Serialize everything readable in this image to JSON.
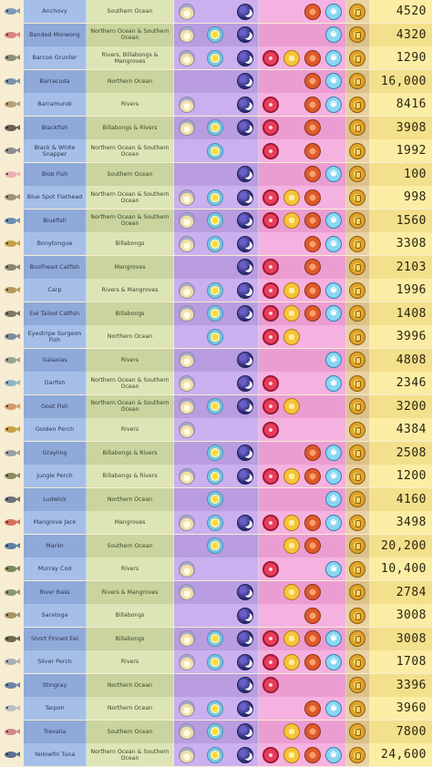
{
  "colors": {
    "time_dawn": "#f2dfa6",
    "time_day": "#79c7e0",
    "time_night": "#2a2c74",
    "season_spring": "#e83e5a",
    "season_summer": "#f7c43a",
    "season_autumn": "#de5a2c",
    "season_winter": "#8ad6f2",
    "coin": "#e0a528"
  },
  "icons": {
    "time": [
      "dawn-icon",
      "day-icon",
      "night-icon"
    ],
    "season": [
      "spring-icon",
      "summer-icon",
      "autumn-icon",
      "winter-icon"
    ],
    "price": "coin-icon",
    "winter_glyph": "❄"
  },
  "fish": [
    {
      "name": "Anchovy",
      "location": "Southern Ocean",
      "time": [
        "dawn",
        "night"
      ],
      "season": [
        "autumn",
        "winter"
      ],
      "price": "4520",
      "fish_color": "#7f9bb5"
    },
    {
      "name": "Banded Morwong",
      "location": "Northern Ocean & Southern Ocean",
      "time": [
        "dawn",
        "day",
        "night"
      ],
      "season": [
        "winter"
      ],
      "price": "4320",
      "fish_color": "#d9837e"
    },
    {
      "name": "Barcoo Grunter",
      "location": "Rivers, Billabongs & Mangroves",
      "time": [
        "dawn",
        "day",
        "night"
      ],
      "season": [
        "spring",
        "summer",
        "autumn",
        "winter"
      ],
      "price": "1290",
      "fish_color": "#8a8f7a"
    },
    {
      "name": "Barracuda",
      "location": "Northern Ocean",
      "time": [
        "night"
      ],
      "season": [
        "autumn",
        "winter"
      ],
      "price": "16,000",
      "fish_color": "#7a93a8"
    },
    {
      "name": "Barramundi",
      "location": "Rivers",
      "time": [
        "dawn",
        "night"
      ],
      "season": [
        "spring",
        "autumn",
        "winter"
      ],
      "price": "8416",
      "fish_color": "#b8a27a"
    },
    {
      "name": "Blackfish",
      "location": "Billabongs & Rivers",
      "time": [
        "dawn",
        "day",
        "night"
      ],
      "season": [
        "spring",
        "autumn"
      ],
      "price": "3908",
      "fish_color": "#6b6256"
    },
    {
      "name": "Black & White Snapper",
      "location": "Northern Ocean & Southern Ocean",
      "time": [
        "day"
      ],
      "season": [
        "spring",
        "autumn"
      ],
      "price": "1992",
      "fish_color": "#8d8d8d"
    },
    {
      "name": "Blob Fish",
      "location": "Southern Ocean",
      "time": [
        "night"
      ],
      "season": [
        "autumn",
        "winter"
      ],
      "price": "100",
      "fish_color": "#e8b1b3"
    },
    {
      "name": "Blue Spot Flathead",
      "location": "Northern Ocean & Southern Ocean",
      "time": [
        "dawn",
        "day",
        "night"
      ],
      "season": [
        "spring",
        "summer",
        "autumn"
      ],
      "price": "998",
      "fish_color": "#a39274"
    },
    {
      "name": "Bluefish",
      "location": "Northern Ocean & Southern Ocean",
      "time": [
        "dawn",
        "day",
        "night"
      ],
      "season": [
        "spring",
        "summer",
        "autumn",
        "winter"
      ],
      "price": "1560",
      "fish_color": "#6f8fb1"
    },
    {
      "name": "Bonytongue",
      "location": "Billabongs",
      "time": [
        "dawn",
        "day",
        "night"
      ],
      "season": [
        "autumn",
        "winter"
      ],
      "price": "3308",
      "fish_color": "#c2a246"
    },
    {
      "name": "Boofhead Catfish",
      "location": "Mangroves",
      "time": [
        "night"
      ],
      "season": [
        "spring",
        "autumn"
      ],
      "price": "2103",
      "fish_color": "#8b8470"
    },
    {
      "name": "Carp",
      "location": "Rivers & Mangroves",
      "time": [
        "dawn",
        "day",
        "night"
      ],
      "season": [
        "spring",
        "summer",
        "autumn",
        "winter"
      ],
      "price": "1996",
      "fish_color": "#b79a5a"
    },
    {
      "name": "Eel Tailed Catfish",
      "location": "Billabongs",
      "time": [
        "dawn",
        "day",
        "night"
      ],
      "season": [
        "spring",
        "summer",
        "autumn",
        "winter"
      ],
      "price": "1408",
      "fish_color": "#7d7866"
    },
    {
      "name": "Eyestripe Surgeon Fish",
      "location": "Northern Ocean",
      "time": [
        "day"
      ],
      "season": [
        "spring",
        "summer"
      ],
      "price": "3996",
      "fish_color": "#7e8c9b"
    },
    {
      "name": "Galaxias",
      "location": "Rivers",
      "time": [
        "dawn",
        "night"
      ],
      "season": [
        "winter"
      ],
      "price": "4808",
      "fish_color": "#9aa594"
    },
    {
      "name": "Garfish",
      "location": "Northern Ocean & Southern Ocean",
      "time": [
        "dawn",
        "night"
      ],
      "season": [
        "spring",
        "winter"
      ],
      "price": "2346",
      "fish_color": "#8fb3c4"
    },
    {
      "name": "Goat Fish",
      "location": "Northern Ocean & Southern Ocean",
      "time": [
        "dawn",
        "day",
        "night"
      ],
      "season": [
        "spring",
        "summer"
      ],
      "price": "3200",
      "fish_color": "#d39a70"
    },
    {
      "name": "Golden Perch",
      "location": "Rivers",
      "time": [
        "dawn"
      ],
      "season": [
        "spring"
      ],
      "price": "4384",
      "fish_color": "#c9a042"
    },
    {
      "name": "Grayling",
      "location": "Billabongs & Rivers",
      "time": [
        "day",
        "night"
      ],
      "season": [
        "autumn",
        "winter"
      ],
      "price": "2508",
      "fish_color": "#9aa2a6"
    },
    {
      "name": "Jungle Perch",
      "location": "Billabongs & Rivers",
      "time": [
        "dawn",
        "day",
        "night"
      ],
      "season": [
        "spring",
        "summer",
        "autumn",
        "winter"
      ],
      "price": "1200",
      "fish_color": "#8c8a60"
    },
    {
      "name": "Ludwick",
      "location": "Northern Ocean",
      "time": [
        "day"
      ],
      "season": [
        "winter"
      ],
      "price": "4160",
      "fish_color": "#6d727a"
    },
    {
      "name": "Mangrove Jack",
      "location": "Mangroves",
      "time": [
        "dawn",
        "day",
        "night"
      ],
      "season": [
        "spring",
        "summer",
        "autumn",
        "winter"
      ],
      "price": "3498",
      "fish_color": "#d6705a"
    },
    {
      "name": "Marlin",
      "location": "Southern Ocean",
      "time": [
        "day"
      ],
      "season": [
        "summer",
        "autumn"
      ],
      "price": "20,200",
      "fish_color": "#5d7fa3"
    },
    {
      "name": "Murray Cod",
      "location": "Rivers",
      "time": [
        "dawn"
      ],
      "season": [
        "spring",
        "winter"
      ],
      "price": "10,400",
      "fish_color": "#7a8a5a"
    },
    {
      "name": "River Bass",
      "location": "Rivers & Mangroves",
      "time": [
        "dawn",
        "night"
      ],
      "season": [
        "summer",
        "autumn"
      ],
      "price": "2784",
      "fish_color": "#8a9672"
    },
    {
      "name": "Saratoga",
      "location": "Billabongs",
      "time": [
        "night"
      ],
      "season": [
        "autumn"
      ],
      "price": "3008",
      "fish_color": "#a89464"
    },
    {
      "name": "Short Finned Eel",
      "location": "Billabongs",
      "time": [
        "dawn",
        "day",
        "night"
      ],
      "season": [
        "spring",
        "summer",
        "autumn",
        "winter"
      ],
      "price": "3008",
      "fish_color": "#6d6a52"
    },
    {
      "name": "Silver Perch",
      "location": "Rivers",
      "time": [
        "dawn",
        "day",
        "night"
      ],
      "season": [
        "spring",
        "summer",
        "autumn",
        "winter"
      ],
      "price": "1708",
      "fish_color": "#a9b0b4"
    },
    {
      "name": "Stingray",
      "location": "Northern Ocean",
      "time": [
        "night"
      ],
      "season": [
        "spring"
      ],
      "price": "3396",
      "fish_color": "#6d86a3"
    },
    {
      "name": "Tarpon",
      "location": "Northern Ocean",
      "time": [
        "dawn",
        "day",
        "night"
      ],
      "season": [
        "autumn",
        "winter"
      ],
      "price": "3960",
      "fish_color": "#b9c0c4"
    },
    {
      "name": "Trevalla",
      "location": "Southern Ocean",
      "time": [
        "dawn",
        "day",
        "night"
      ],
      "season": [
        "summer",
        "autumn"
      ],
      "price": "7800",
      "fish_color": "#d08a8a"
    },
    {
      "name": "Yellowfin Tuna",
      "location": "Northern Ocean & Southern Ocean",
      "time": [
        "dawn",
        "day",
        "night"
      ],
      "season": [
        "spring",
        "summer",
        "autumn",
        "winter"
      ],
      "price": "24,600",
      "fish_color": "#5a6e8c"
    }
  ]
}
